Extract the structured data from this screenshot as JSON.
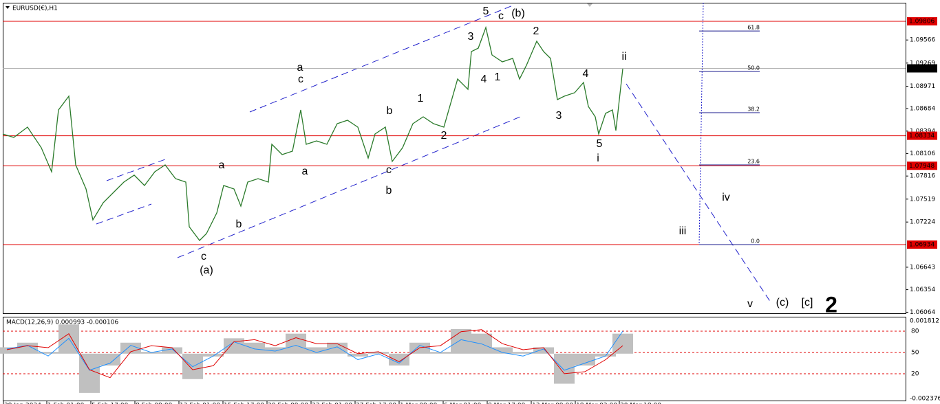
{
  "chart_data": {
    "type": "line",
    "title": "EURUSD(€),H1",
    "xlim": [
      0,
      1312
    ],
    "xticks": [
      {
        "value": 1,
        "label": "29 Jan 2024"
      },
      {
        "value": 64,
        "label": "1 Feb 01:00"
      },
      {
        "value": 128,
        "label": "5 Feb 17:00"
      },
      {
        "value": 192,
        "label": "8 Feb 09:00"
      },
      {
        "value": 256,
        "label": "13 Feb 01:00"
      },
      {
        "value": 320,
        "label": "15 Feb 17:00"
      },
      {
        "value": 384,
        "label": "20 Feb 09:00"
      },
      {
        "value": 448,
        "label": "23 Feb 01:00"
      },
      {
        "value": 512,
        "label": "27 Feb 17:00"
      },
      {
        "value": 576,
        "label": "1 Mar 09:00"
      },
      {
        "value": 640,
        "label": "6 Mar 01:00"
      },
      {
        "value": 704,
        "label": "8 Mar 17:00"
      },
      {
        "value": 768,
        "label": "13 Mar 09:00"
      },
      {
        "value": 832,
        "label": "18 Mar 02:00"
      },
      {
        "value": 896,
        "label": "20 Mar 18:00"
      }
    ],
    "ylim": [
      1.0605,
      1.10045
    ],
    "yticks": [
      1.09566,
      1.09269,
      1.08971,
      1.08684,
      1.08394,
      1.08106,
      1.07816,
      1.07519,
      1.07224,
      1.06643,
      1.06354,
      1.06064
    ],
    "hlines": {
      "color": "#e00000",
      "values": [
        1.09806,
        1.08334,
        1.07948,
        1.06934
      ]
    },
    "current_price": {
      "value": 1.09201,
      "color": "#b0b0b0"
    },
    "price": {
      "color": "#2a7a2a",
      "x": [
        0,
        16,
        36,
        56,
        71,
        81,
        96,
        106,
        121,
        131,
        146,
        161,
        176,
        191,
        206,
        221,
        236,
        251,
        266,
        271,
        286,
        296,
        311,
        321,
        336,
        346,
        356,
        371,
        386,
        391,
        406,
        421,
        433,
        441,
        456,
        471,
        486,
        501,
        516,
        531,
        541,
        556,
        566,
        581,
        596,
        611,
        626,
        641,
        651,
        661,
        676,
        681,
        691,
        702,
        711,
        726,
        741,
        751,
        761,
        776,
        786,
        796,
        806,
        816,
        831,
        844,
        851,
        861,
        866,
        876,
        886,
        891,
        901
      ],
      "values": [
        1.08357,
        1.08313,
        1.08445,
        1.0818,
        1.07871,
        1.08666,
        1.08843,
        1.07959,
        1.0765,
        1.07252,
        1.07473,
        1.07606,
        1.07738,
        1.07827,
        1.07694,
        1.07871,
        1.07959,
        1.07782,
        1.07738,
        1.07164,
        1.06987,
        1.07075,
        1.07341,
        1.07694,
        1.0765,
        1.07429,
        1.07738,
        1.07782,
        1.07738,
        1.08224,
        1.08092,
        1.08136,
        1.08666,
        1.08224,
        1.08268,
        1.08224,
        1.08489,
        1.08534,
        1.08445,
        1.08047,
        1.08357,
        1.08445,
        1.08003,
        1.0818,
        1.08489,
        1.08578,
        1.08489,
        1.08445,
        1.08754,
        1.09064,
        1.08931,
        1.09417,
        1.09461,
        1.09726,
        1.09373,
        1.09285,
        1.09329,
        1.09064,
        1.0924,
        1.0955,
        1.09417,
        1.09329,
        1.08799,
        1.08843,
        1.08887,
        1.0902,
        1.0871,
        1.08578,
        1.08357,
        1.08622,
        1.08666,
        1.08401,
        1.09196
      ]
    },
    "fib": {
      "color": "#1a1a8c",
      "levels": [
        61.8,
        {
          "value": 50,
          "label": "50.0"
        },
        38.2,
        23.6,
        {
          "value": 0,
          "label": "0.0"
        }
      ],
      "prices": [
        1.09682,
        1.09161,
        1.08631,
        1.07959,
        1.06934
      ]
    },
    "annotations": [
      {
        "text": "5",
        "color": "#000000"
      },
      {
        "text": "(b)",
        "color": "#2222cc"
      },
      {
        "text": "c",
        "color": "#ff33cc"
      },
      {
        "text": "2",
        "color": "#000000"
      },
      {
        "text": "3",
        "color": "#000000"
      },
      {
        "text": "ii",
        "color": "#ff33cc"
      },
      {
        "text": "a",
        "color": "#ff33cc"
      },
      {
        "text": "c",
        "color": "#000000"
      },
      {
        "text": "4",
        "color": "#000000"
      },
      {
        "text": "1",
        "color": "#000000"
      },
      {
        "text": "4",
        "color": "#000000"
      },
      {
        "text": "1",
        "color": "#000000"
      },
      {
        "text": "b",
        "color": "#000000"
      },
      {
        "text": "3",
        "color": "#000000"
      },
      {
        "text": "2",
        "color": "#000000"
      },
      {
        "text": "5",
        "color": "#000000"
      },
      {
        "text": "i",
        "color": "#ff33cc"
      },
      {
        "text": "a",
        "color": "#000000"
      },
      {
        "text": "a",
        "color": "#000000"
      },
      {
        "text": "c",
        "color": "#000000"
      },
      {
        "text": "b",
        "color": "#ff33cc"
      },
      {
        "text": "iv",
        "color": "#ff33cc"
      },
      {
        "text": "b",
        "color": "#000000"
      },
      {
        "text": "iii",
        "color": "#ff33cc"
      },
      {
        "text": "c",
        "color": "#ff33cc"
      },
      {
        "text": "(a)",
        "color": "#2222cc"
      },
      {
        "text": "v",
        "color": "#ff33cc"
      },
      {
        "text": "(c)",
        "color": "#2222cc"
      },
      {
        "text": "[c]",
        "color": "#1a8a1a"
      },
      {
        "text": "2",
        "color": "#e00000"
      }
    ],
    "indicator": {
      "title": "MACD(12,26,9) 0.000993 -0.000106",
      "ylim": [
        -0.002376,
        0.001812
      ],
      "y2lim": [
        -18.7,
        99.4
      ],
      "y2ticks": [
        20,
        50,
        80
      ],
      "x": [
        6,
        36,
        66,
        96,
        126,
        156,
        186,
        216,
        246,
        276,
        306,
        336,
        366,
        396,
        426,
        456,
        486,
        516,
        546,
        576,
        606,
        636,
        666,
        696,
        726,
        756,
        786,
        816,
        846,
        876,
        901
      ],
      "histogram": {
        "color": "#c0c0c0",
        "values": [
          0.00032,
          0.00055,
          9e-05,
          0.00146,
          -0.00196,
          -0.00059,
          0.00055,
          9e-05,
          0.00032,
          -0.00127,
          -0.00014,
          0.00077,
          0.00055,
          0.00032,
          0.001,
          0.00032,
          0.00055,
          -0.00014,
          9e-05,
          -0.00059,
          0.00055,
          9e-05,
          0.00123,
          0.001,
          0.00032,
          9e-05,
          0.00032,
          -0.0015,
          -0.00059,
          -0.00014,
          0.001
        ]
      },
      "signal": {
        "color": "#e00000",
        "values": [
          0.0002,
          0.0004,
          0.0003,
          0.001,
          -0.0008,
          -0.0012,
          0.0001,
          0.0004,
          0.0003,
          -0.0008,
          -0.0006,
          0.0006,
          0.0007,
          0.0004,
          0.0008,
          0.0005,
          0.0005,
          0.0,
          0.0001,
          -0.0004,
          0.0003,
          0.0004,
          0.0011,
          0.0012,
          0.0005,
          0.0002,
          0.0003,
          -0.001,
          -0.0009,
          -0.0003,
          0.0004
        ]
      },
      "oscillator": {
        "color": "#1e90ff",
        "axis": "y2",
        "values": [
          55,
          60,
          45,
          70,
          25,
          35,
          60,
          50,
          55,
          30,
          45,
          65,
          55,
          52,
          60,
          50,
          58,
          40,
          48,
          35,
          60,
          50,
          68,
          62,
          50,
          45,
          55,
          25,
          35,
          45,
          80
        ]
      }
    }
  }
}
